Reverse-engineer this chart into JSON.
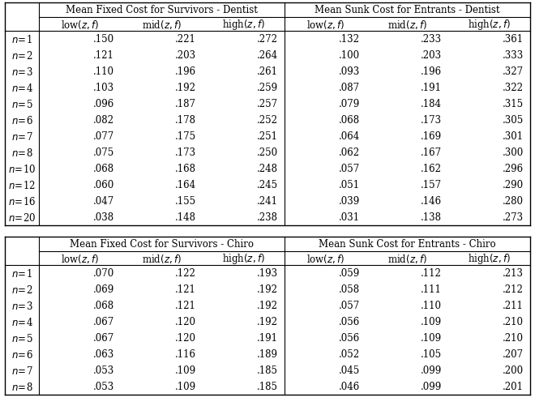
{
  "dentist_rows": [
    "n=1",
    "n=2",
    "n=3",
    "n=4",
    "n=5",
    "n=6",
    "n=7",
    "n=8",
    "n=10",
    "n=12",
    "n=16",
    "n=20"
  ],
  "chiro_rows": [
    "n=1",
    "n=2",
    "n=3",
    "n=4",
    "n=5",
    "n=6",
    "n=7",
    "n=8"
  ],
  "dentist_fixed": [
    [
      ".150",
      ".221",
      ".272"
    ],
    [
      ".121",
      ".203",
      ".264"
    ],
    [
      ".110",
      ".196",
      ".261"
    ],
    [
      ".103",
      ".192",
      ".259"
    ],
    [
      ".096",
      ".187",
      ".257"
    ],
    [
      ".082",
      ".178",
      ".252"
    ],
    [
      ".077",
      ".175",
      ".251"
    ],
    [
      ".075",
      ".173",
      ".250"
    ],
    [
      ".068",
      ".168",
      ".248"
    ],
    [
      ".060",
      ".164",
      ".245"
    ],
    [
      ".047",
      ".155",
      ".241"
    ],
    [
      ".038",
      ".148",
      ".238"
    ]
  ],
  "dentist_sunk": [
    [
      ".132",
      ".233",
      ".361"
    ],
    [
      ".100",
      ".203",
      ".333"
    ],
    [
      ".093",
      ".196",
      ".327"
    ],
    [
      ".087",
      ".191",
      ".322"
    ],
    [
      ".079",
      ".184",
      ".315"
    ],
    [
      ".068",
      ".173",
      ".305"
    ],
    [
      ".064",
      ".169",
      ".301"
    ],
    [
      ".062",
      ".167",
      ".300"
    ],
    [
      ".057",
      ".162",
      ".296"
    ],
    [
      ".051",
      ".157",
      ".290"
    ],
    [
      ".039",
      ".146",
      ".280"
    ],
    [
      ".031",
      ".138",
      ".273"
    ]
  ],
  "chiro_fixed": [
    [
      ".070",
      ".122",
      ".193"
    ],
    [
      ".069",
      ".121",
      ".192"
    ],
    [
      ".068",
      ".121",
      ".192"
    ],
    [
      ".067",
      ".120",
      ".192"
    ],
    [
      ".067",
      ".120",
      ".191"
    ],
    [
      ".063",
      ".116",
      ".189"
    ],
    [
      ".053",
      ".109",
      ".185"
    ],
    [
      ".053",
      ".109",
      ".185"
    ]
  ],
  "chiro_sunk": [
    [
      ".059",
      ".112",
      ".213"
    ],
    [
      ".058",
      ".111",
      ".212"
    ],
    [
      ".057",
      ".110",
      ".211"
    ],
    [
      ".056",
      ".109",
      ".210"
    ],
    [
      ".056",
      ".109",
      ".210"
    ],
    [
      ".052",
      ".105",
      ".207"
    ],
    [
      ".045",
      ".099",
      ".200"
    ],
    [
      ".046",
      ".099",
      ".201"
    ]
  ],
  "dentist_header_left": "Mean Fixed Cost for Survivors - Dentist",
  "dentist_header_right": "Mean Sunk Cost for Entrants - Dentist",
  "chiro_header_left": "Mean Fixed Cost for Survivors - Chiro",
  "chiro_header_right": "Mean Sunk Cost for Entrants - Chiro",
  "col_header": "low(z, f)",
  "bg_color": "white",
  "line_color": "black",
  "font_size": 8.5,
  "header_font_size": 8.5
}
